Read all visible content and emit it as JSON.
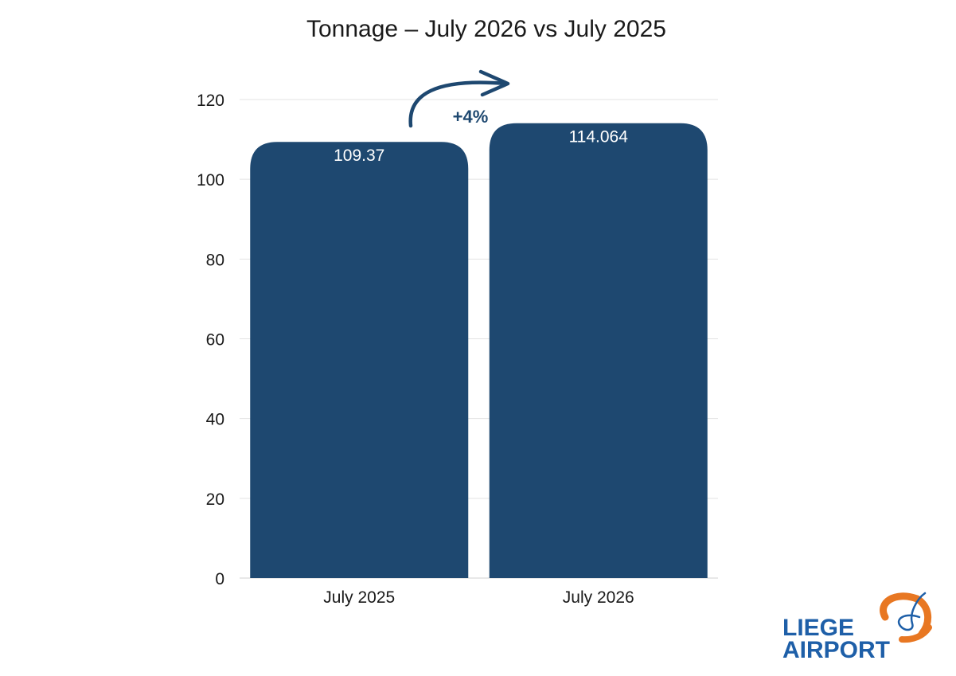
{
  "chart_data": {
    "type": "bar",
    "title": "Tonnage – July 2026 vs July 2025",
    "xlabel": "",
    "ylabel": "",
    "categories": [
      "July 2025",
      "July 2026"
    ],
    "values": [
      109.37,
      114.064
    ],
    "data_labels": [
      "109.37",
      "114.064"
    ],
    "ylim": [
      0,
      120
    ],
    "yticks": [
      0,
      20,
      40,
      60,
      80,
      100,
      120
    ],
    "ytick_labels": [
      "0",
      "20",
      "40",
      "60",
      "80",
      "100",
      "120"
    ],
    "grid": true,
    "legend": "none",
    "bar_color": "#1e4870",
    "gridline_color": "#e3e3e3",
    "annotation": {
      "label": "+4%",
      "icon": "curved-arrow-icon",
      "color": "#1e4870"
    }
  },
  "logo": {
    "line1": "LIEGE",
    "line2": "AIRPORT",
    "text_color": "#1e5fa8",
    "accent_color": "#e87722"
  }
}
